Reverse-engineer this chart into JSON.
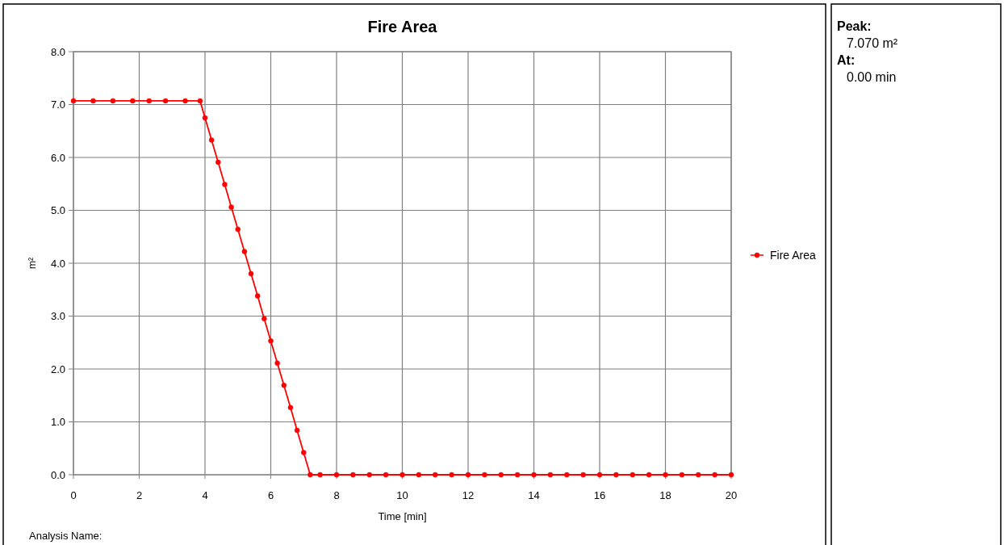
{
  "chart_data": {
    "type": "line",
    "title": "Fire Area",
    "xlabel": "Time [min]",
    "ylabel": "m²",
    "xlim": [
      0,
      20
    ],
    "xticks": [
      0,
      2,
      4,
      6,
      8,
      10,
      12,
      14,
      16,
      18,
      20
    ],
    "ylim": [
      0,
      8
    ],
    "yticks": [
      {
        "value": 0,
        "label": "0.0"
      },
      {
        "value": 1,
        "label": "1.0"
      },
      {
        "value": 2,
        "label": "2.0"
      },
      {
        "value": 3,
        "label": "3.0"
      },
      {
        "value": 4,
        "label": "4.0"
      },
      {
        "value": 5,
        "label": "5.0"
      },
      {
        "value": 6,
        "label": "6.0"
      },
      {
        "value": 7,
        "label": "7.0"
      },
      {
        "value": 8,
        "label": "8.0"
      }
    ],
    "grid": true,
    "legend": "right",
    "marker": "circle",
    "line_style": "solid",
    "series": [
      {
        "name": "Fire Area",
        "color": "#ff0000",
        "x": [
          0,
          0.6,
          1.2,
          1.8,
          2.3,
          2.8,
          3.4,
          3.85,
          4.0,
          4.2,
          4.4,
          4.6,
          4.8,
          5.0,
          5.2,
          5.4,
          5.6,
          5.8,
          6.0,
          6.2,
          6.4,
          6.6,
          6.8,
          7.0,
          7.2,
          7.5,
          8,
          8.5,
          9,
          9.5,
          10,
          10.5,
          11,
          11.5,
          12,
          12.5,
          13,
          13.5,
          14,
          14.5,
          15,
          15.5,
          16,
          16.5,
          17,
          17.5,
          18,
          18.5,
          19,
          19.5,
          20
        ],
        "values": [
          7.07,
          7.07,
          7.07,
          7.07,
          7.07,
          7.07,
          7.07,
          7.07,
          6.75,
          6.33,
          5.91,
          5.49,
          5.06,
          4.64,
          4.22,
          3.8,
          3.38,
          2.95,
          2.53,
          2.11,
          1.69,
          1.27,
          0.84,
          0.42,
          0,
          0,
          0,
          0,
          0,
          0,
          0,
          0,
          0,
          0,
          0,
          0,
          0,
          0,
          0,
          0,
          0,
          0,
          0,
          0,
          0,
          0,
          0,
          0,
          0,
          0,
          0
        ]
      }
    ],
    "annotations": [
      "Peak:",
      "7.070 m²",
      "At:",
      "0.00 min",
      "Analysis Name:"
    ]
  }
}
